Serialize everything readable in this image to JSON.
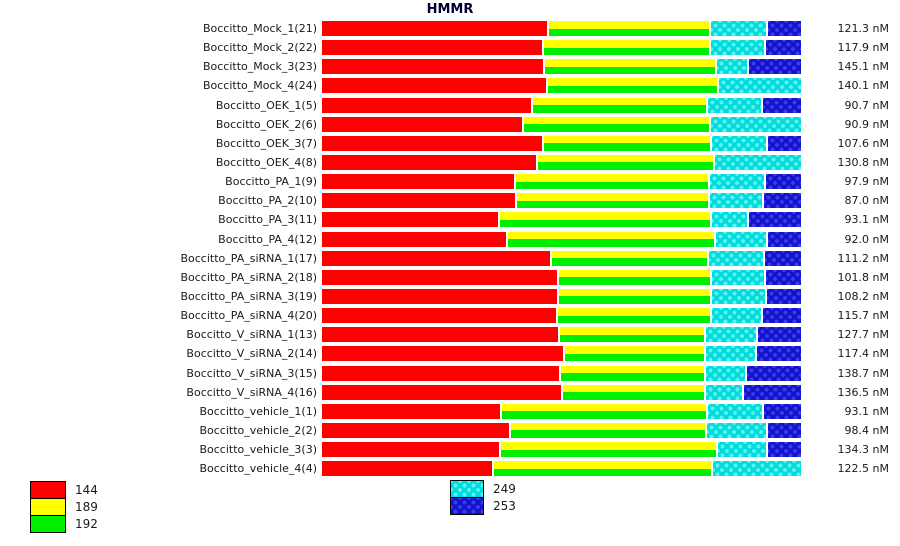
{
  "title": "HMMR",
  "legend": {
    "primary": [
      {
        "label": "144",
        "key": "red"
      },
      {
        "label": "189",
        "key": "yellow"
      },
      {
        "label": "192",
        "key": "green"
      }
    ],
    "secondary": [
      {
        "label": "249",
        "key": "cyan"
      },
      {
        "label": "253",
        "key": "blue"
      }
    ]
  },
  "colors": {
    "p144": "#ff0000",
    "p189": "#ffff00",
    "p192": "#00ee00",
    "p249": "#00dcdc",
    "p253": "#1313cd"
  },
  "chart_data": {
    "type": "bar",
    "orientation": "horizontal-100pct-stacked",
    "value_unit": "nM",
    "series_order": [
      "144",
      "189",
      "192",
      "249",
      "253"
    ],
    "legend_position": "bottom",
    "grid": false,
    "rows": [
      {
        "label": "Boccitto_Mock_1(21)",
        "value": "121.3 nM",
        "segments": {
          "p144": 47.6,
          "p189": 33.8,
          "p192": 33.8,
          "p249": 11.7,
          "p253": 6.9
        }
      },
      {
        "label": "Boccitto_Mock_2(22)",
        "value": "117.9 nM",
        "segments": {
          "p144": 46.6,
          "p189": 34.7,
          "p192": 34.7,
          "p249": 11.3,
          "p253": 7.4
        }
      },
      {
        "label": "Boccitto_Mock_3(23)",
        "value": "145.1 nM",
        "segments": {
          "p144": 46.8,
          "p189": 35.9,
          "p192": 35.9,
          "p249": 6.3,
          "p253": 11.0
        }
      },
      {
        "label": "Boccitto_Mock_4(24)",
        "value": "140.1 nM",
        "segments": {
          "p144": 47.2,
          "p189": 35.5,
          "p192": 35.5,
          "p249": 17.3,
          "p253": 0
        }
      },
      {
        "label": "Boccitto_OEK_1(5)",
        "value": "90.7 nM",
        "segments": {
          "p144": 44.1,
          "p189": 36.7,
          "p192": 36.7,
          "p249": 11.1,
          "p253": 8.1
        }
      },
      {
        "label": "Boccitto_OEK_2(6)",
        "value": "90.9 nM",
        "segments": {
          "p144": 42.2,
          "p189": 38.8,
          "p192": 38.8,
          "p249": 19.0,
          "p253": 0
        }
      },
      {
        "label": "Boccitto_OEK_3(7)",
        "value": "107.6 nM",
        "segments": {
          "p144": 46.6,
          "p189": 35.1,
          "p192": 35.1,
          "p249": 11.3,
          "p253": 7.0
        }
      },
      {
        "label": "Boccitto_OEK_4(8)",
        "value": "130.8 nM",
        "segments": {
          "p144": 45.1,
          "p189": 36.7,
          "p192": 36.7,
          "p249": 18.2,
          "p253": 0
        }
      },
      {
        "label": "Boccitto_PA_1(9)",
        "value": "97.9 nM",
        "segments": {
          "p144": 40.5,
          "p189": 40.7,
          "p192": 40.7,
          "p249": 11.3,
          "p253": 7.5
        }
      },
      {
        "label": "Boccitto_PA_2(10)",
        "value": "87.0 nM",
        "segments": {
          "p144": 40.7,
          "p189": 40.5,
          "p192": 40.5,
          "p249": 10.9,
          "p253": 7.9
        }
      },
      {
        "label": "Boccitto_PA_3(11)",
        "value": "93.1 nM",
        "segments": {
          "p144": 37.2,
          "p189": 44.5,
          "p192": 44.5,
          "p249": 7.3,
          "p253": 11.0
        }
      },
      {
        "label": "Boccitto_PA_4(12)",
        "value": "92.0 nM",
        "segments": {
          "p144": 39.0,
          "p189": 43.4,
          "p192": 43.4,
          "p249": 10.6,
          "p253": 7.0
        }
      },
      {
        "label": "Boccitto_PA_siRNA_1(17)",
        "value": "111.2 nM",
        "segments": {
          "p144": 48.2,
          "p189": 32.8,
          "p192": 32.8,
          "p249": 11.3,
          "p253": 7.7
        }
      },
      {
        "label": "Boccitto_PA_siRNA_2(18)",
        "value": "101.8 nM",
        "segments": {
          "p144": 49.7,
          "p189": 31.9,
          "p192": 31.9,
          "p249": 10.9,
          "p253": 7.5
        }
      },
      {
        "label": "Boccitto_PA_siRNA_3(19)",
        "value": "108.2 nM",
        "segments": {
          "p144": 49.7,
          "p189": 31.9,
          "p192": 31.9,
          "p249": 11.3,
          "p253": 7.1
        }
      },
      {
        "label": "Boccitto_PA_siRNA_4(20)",
        "value": "115.7 nM",
        "segments": {
          "p144": 49.5,
          "p189": 32.2,
          "p192": 32.2,
          "p249": 10.2,
          "p253": 8.1
        }
      },
      {
        "label": "Boccitto_V_siRNA_1(13)",
        "value": "127.7 nM",
        "segments": {
          "p144": 49.9,
          "p189": 30.5,
          "p192": 30.5,
          "p249": 10.6,
          "p253": 9.0
        }
      },
      {
        "label": "Boccitto_V_siRNA_2(14)",
        "value": "117.4 nM",
        "segments": {
          "p144": 50.9,
          "p189": 29.4,
          "p192": 29.4,
          "p249": 10.4,
          "p253": 9.3
        }
      },
      {
        "label": "Boccitto_V_siRNA_3(15)",
        "value": "138.7 nM",
        "segments": {
          "p144": 50.1,
          "p189": 30.3,
          "p192": 30.3,
          "p249": 8.1,
          "p253": 11.5
        }
      },
      {
        "label": "Boccitto_V_siRNA_4(16)",
        "value": "136.5 nM",
        "segments": {
          "p144": 50.5,
          "p189": 29.9,
          "p192": 29.9,
          "p249": 7.5,
          "p253": 12.1
        }
      },
      {
        "label": "Boccitto_vehicle_1(1)",
        "value": "93.1 nM",
        "segments": {
          "p144": 37.6,
          "p189": 43.2,
          "p192": 43.2,
          "p249": 11.3,
          "p253": 7.9
        }
      },
      {
        "label": "Boccitto_vehicle_2(2)",
        "value": "98.4 nM",
        "segments": {
          "p144": 39.5,
          "p189": 41.1,
          "p192": 41.1,
          "p249": 12.5,
          "p253": 6.9
        }
      },
      {
        "label": "Boccitto_vehicle_3(3)",
        "value": "134.3 nM",
        "segments": {
          "p144": 37.4,
          "p189": 45.5,
          "p192": 45.5,
          "p249": 10.2,
          "p253": 6.9
        }
      },
      {
        "label": "Boccitto_vehicle_4(4)",
        "value": "122.5 nM",
        "segments": {
          "p144": 35.7,
          "p189": 45.7,
          "p192": 45.7,
          "p249": 18.6,
          "p253": 0
        }
      }
    ]
  }
}
